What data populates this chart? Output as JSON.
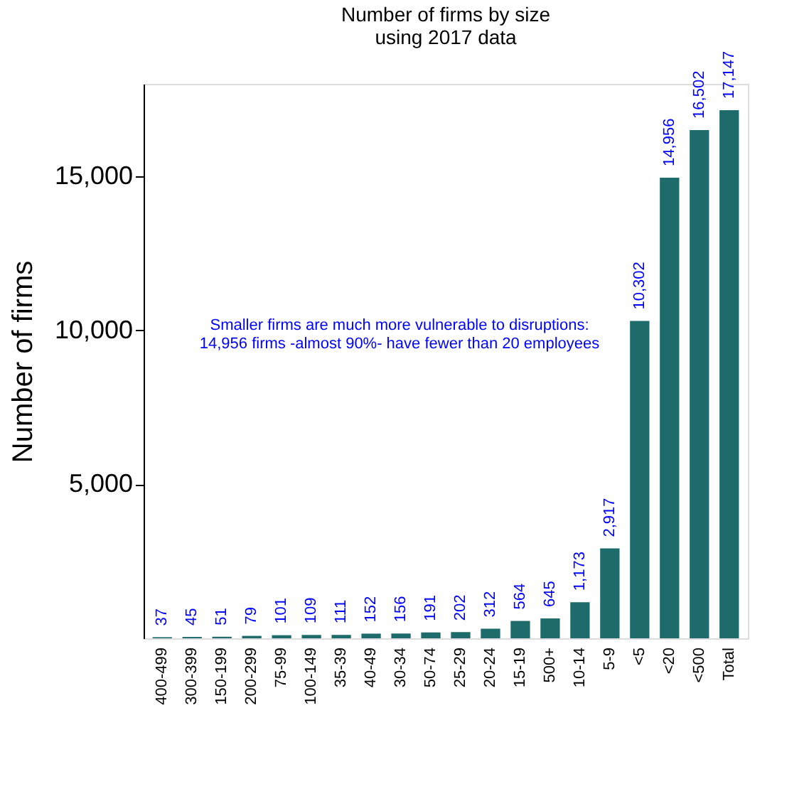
{
  "chart_data": {
    "type": "bar",
    "title": "Number of firms by size\nusing 2017 data",
    "ylabel": "Number of firms",
    "categories": [
      "400-499",
      "300-399",
      "150-199",
      "200-299",
      "75-99",
      "100-149",
      "35-39",
      "40-49",
      "30-34",
      "50-74",
      "25-29",
      "20-24",
      "15-19",
      "500+",
      "10-14",
      "5-9",
      "<5",
      "<20",
      "<500",
      "Total"
    ],
    "values": [
      37,
      45,
      51,
      79,
      101,
      109,
      111,
      152,
      156,
      191,
      202,
      312,
      564,
      645,
      1173,
      2917,
      10302,
      14956,
      16502,
      17147
    ],
    "color": "#1e6b6b",
    "ylim": [
      0,
      18000
    ],
    "yticks": [
      {
        "value": 5000,
        "label": "5,000"
      },
      {
        "value": 10000,
        "label": "10,000"
      },
      {
        "value": 15000,
        "label": "15,000"
      }
    ],
    "grid": false,
    "value_labels": [
      "37",
      "45",
      "51",
      "79",
      "101",
      "109",
      "111",
      "152",
      "156",
      "191",
      "202",
      "312",
      "564",
      "645",
      "1,173",
      "2,917",
      "10,302",
      "14,956",
      "16,502",
      "17,147"
    ],
    "annotations": [
      "Smaller firms are much more vulnerable to disruptions:\n14,956 firms -almost 90%- have fewer than 20 employees"
    ]
  }
}
